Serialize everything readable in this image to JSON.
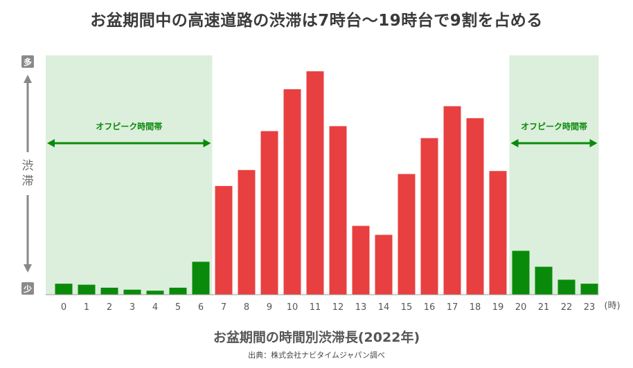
{
  "title": "お盆期間中の高速道路の渋滞は7時台～19時台で9割を占める",
  "subtitle": "お盆期間の時間別渋滞長(2022年)",
  "source": "出典：株式会社ナビタイムジャパン調べ",
  "colors": {
    "peak": "#e84040",
    "offpeak": "#0a8a0a",
    "offpeak_band": "#dcefdc",
    "axis": "#888888"
  },
  "chart_data": {
    "type": "bar",
    "categories": [
      "0",
      "1",
      "2",
      "3",
      "4",
      "5",
      "6",
      "7",
      "8",
      "9",
      "10",
      "11",
      "12",
      "13",
      "14",
      "15",
      "16",
      "17",
      "18",
      "19",
      "20",
      "21",
      "22",
      "23"
    ],
    "values": [
      5.5,
      5,
      3.5,
      2.5,
      2,
      3.5,
      16.5,
      54.5,
      62.5,
      82,
      103,
      112,
      84.5,
      34.5,
      30,
      60.5,
      78.5,
      94.5,
      88.5,
      62,
      22,
      14,
      7.5,
      5.5
    ],
    "x_unit": "(時)",
    "ylabel": "渋滞",
    "y_top_label": "多",
    "y_bottom_label": "少",
    "ylim": [
      0,
      120
    ],
    "peak_range": [
      7,
      19
    ],
    "annotations": [
      {
        "text": "オフピーク時間帯",
        "from": 0,
        "to": 6
      },
      {
        "text": "オフピーク時間帯",
        "from": 20,
        "to": 23
      }
    ]
  }
}
